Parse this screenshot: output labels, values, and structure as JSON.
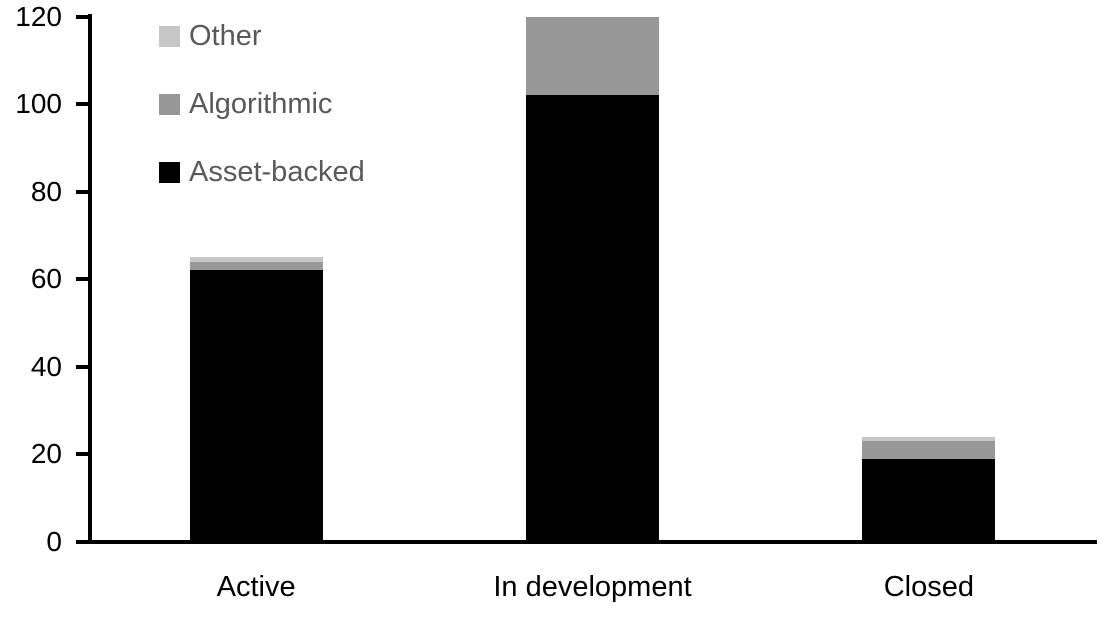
{
  "chart_data": {
    "type": "bar",
    "subtype": "stacked-vertical",
    "title": "",
    "xlabel": "",
    "ylabel": "",
    "categories": [
      "Active",
      "In development",
      "Closed"
    ],
    "series": [
      {
        "name": "Asset-backed",
        "color": "#000000",
        "values": [
          62,
          102,
          19
        ]
      },
      {
        "name": "Algorithmic",
        "color": "#989898",
        "values": [
          2,
          18,
          4
        ]
      },
      {
        "name": "Other",
        "color": "#c6c6c6",
        "values": [
          1,
          0,
          1
        ]
      }
    ],
    "stack_order": "bottom-to-top",
    "totals": [
      65,
      120,
      24
    ],
    "yaxis": {
      "min": 0,
      "max": 120,
      "tick_step": 20,
      "ticks": [
        "0",
        "20",
        "40",
        "60",
        "80",
        "100",
        "120"
      ],
      "label_color": "#000000"
    },
    "grid": false,
    "axis_color": "#000000",
    "background_color": "#ffffff",
    "legend": {
      "position": "top-left",
      "order": [
        "Other",
        "Algorithmic",
        "Asset-backed"
      ],
      "text_color": "#595959"
    }
  }
}
